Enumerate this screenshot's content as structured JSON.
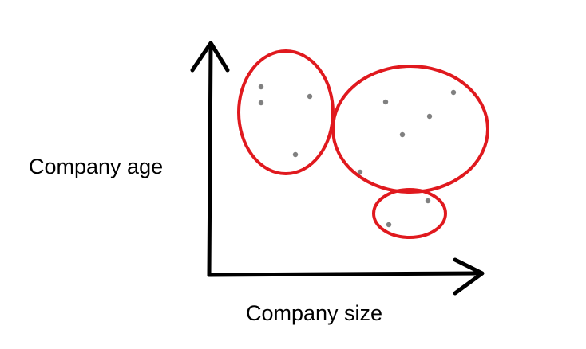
{
  "labels": {
    "x_axis": "Company size",
    "y_axis": "Company age"
  },
  "colors": {
    "axis": "#000000",
    "cluster_outline": "#e0191e",
    "point": "#808080"
  },
  "clusters": [
    {
      "id": "cluster-top-left",
      "points": 4
    },
    {
      "id": "cluster-large-right",
      "points": 5
    },
    {
      "id": "cluster-bottom",
      "points": 2
    }
  ]
}
